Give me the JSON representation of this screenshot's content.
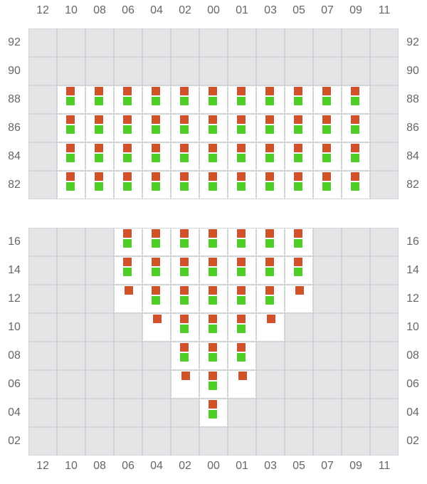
{
  "columns": [
    "12",
    "10",
    "08",
    "06",
    "04",
    "02",
    "00",
    "01",
    "03",
    "05",
    "07",
    "09",
    "11"
  ],
  "colors": {
    "orange": "#d0522b",
    "green": "#4fce2a",
    "unavailable": "#e4e4e7",
    "available": "#ffffff",
    "grid": "#d4d4d8"
  },
  "legend_note": "P = orange+green pair, S = orange only, - = unavailable (gray)",
  "grids": [
    {
      "rows": [
        {
          "label": "92",
          "cells": "-------------"
        },
        {
          "label": "90",
          "cells": "-------------"
        },
        {
          "label": "88",
          "cells": "-PPPPPPPPPPP-"
        },
        {
          "label": "86",
          "cells": "-PPPPPPPPPPP-"
        },
        {
          "label": "84",
          "cells": "-PPPPPPPPPPP-"
        },
        {
          "label": "82",
          "cells": "-PPPPPPPPPPP-"
        }
      ]
    },
    {
      "rows": [
        {
          "label": "16",
          "cells": "---PPPPPPP---"
        },
        {
          "label": "14",
          "cells": "---PPPPPPP---"
        },
        {
          "label": "12",
          "cells": "---SPPPPPS---"
        },
        {
          "label": "10",
          "cells": "----SPPPS----"
        },
        {
          "label": "08",
          "cells": "-----PPP-----"
        },
        {
          "label": "06",
          "cells": "-----SPS-----"
        },
        {
          "label": "04",
          "cells": "------P------"
        },
        {
          "label": "02",
          "cells": "-------------"
        }
      ]
    }
  ]
}
